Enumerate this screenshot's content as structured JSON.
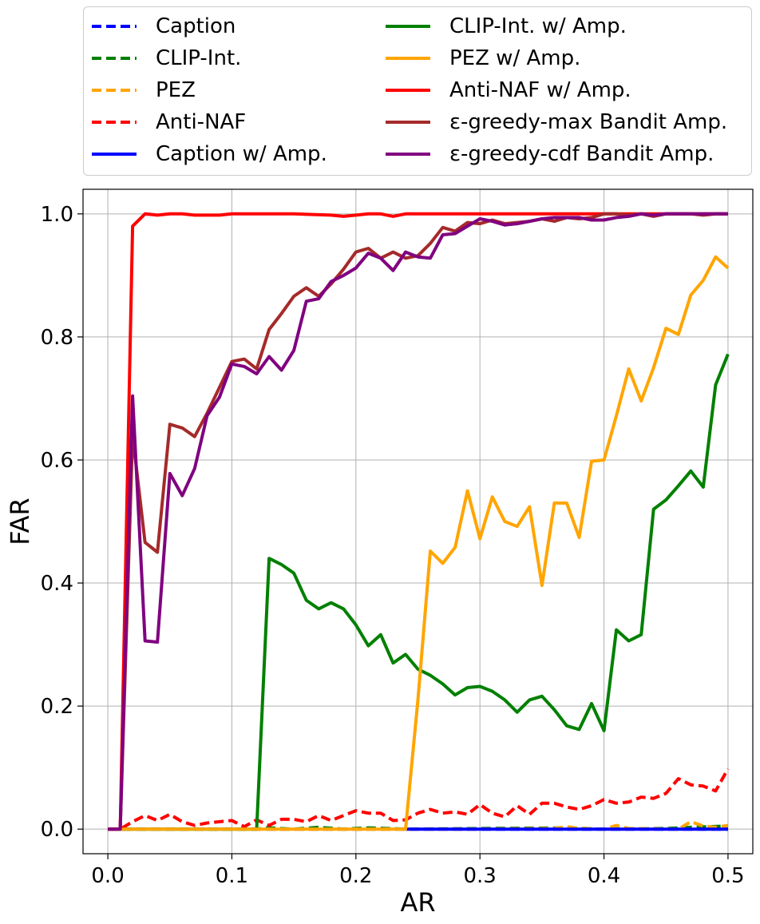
{
  "chart_data": {
    "type": "line",
    "xlabel": "AR",
    "ylabel": "FAR",
    "xlim": [
      -0.02,
      0.52
    ],
    "ylim": [
      -0.04,
      1.04
    ],
    "xticks": [
      "0.0",
      "0.1",
      "0.2",
      "0.3",
      "0.4",
      "0.5"
    ],
    "yticks": [
      "0.0",
      "0.2",
      "0.4",
      "0.6",
      "0.8",
      "1.0"
    ],
    "grid": true,
    "legend_position": "top",
    "series": [
      {
        "name": "Caption",
        "color": "#0000ff",
        "dashed": true,
        "x": [
          0,
          0.5
        ],
        "y": [
          0,
          0
        ]
      },
      {
        "name": "CLIP-Int.",
        "color": "#008000",
        "dashed": true,
        "x": [
          0,
          0.12,
          0.13,
          0.15,
          0.17,
          0.19,
          0.21,
          0.24,
          0.3,
          0.37,
          0.4,
          0.45,
          0.47,
          0.5
        ],
        "y": [
          0,
          0,
          0.002,
          0,
          0.003,
          0,
          0.002,
          0,
          0.001,
          0.002,
          0,
          0.001,
          0.003,
          0.005
        ]
      },
      {
        "name": "PEZ",
        "color": "#ffa500",
        "dashed": true,
        "x": [
          0,
          0.3,
          0.36,
          0.37,
          0.38,
          0.4,
          0.41,
          0.42,
          0.46,
          0.47,
          0.48,
          0.49,
          0.5
        ],
        "y": [
          0,
          0,
          0.001,
          0.004,
          0.001,
          0,
          0.006,
          0.001,
          0,
          0.012,
          0.005,
          0.003,
          0.006
        ]
      },
      {
        "name": "Anti-NAF",
        "color": "#ff0000",
        "dashed": true,
        "x": [
          0,
          0.01,
          0.02,
          0.03,
          0.04,
          0.05,
          0.06,
          0.07,
          0.08,
          0.09,
          0.1,
          0.11,
          0.12,
          0.13,
          0.14,
          0.15,
          0.16,
          0.17,
          0.18,
          0.19,
          0.2,
          0.21,
          0.22,
          0.23,
          0.24,
          0.25,
          0.26,
          0.27,
          0.28,
          0.29,
          0.3,
          0.31,
          0.32,
          0.33,
          0.34,
          0.35,
          0.36,
          0.37,
          0.38,
          0.39,
          0.4,
          0.41,
          0.42,
          0.43,
          0.44,
          0.45,
          0.46,
          0.47,
          0.48,
          0.49,
          0.5
        ],
        "y": [
          0,
          0,
          0.012,
          0.022,
          0.014,
          0.024,
          0.012,
          0.006,
          0.01,
          0.012,
          0.014,
          0.004,
          0.015,
          0.006,
          0.016,
          0.016,
          0.012,
          0.022,
          0.014,
          0.022,
          0.03,
          0.026,
          0.026,
          0.014,
          0.015,
          0.026,
          0.032,
          0.026,
          0.028,
          0.024,
          0.04,
          0.026,
          0.02,
          0.038,
          0.024,
          0.042,
          0.042,
          0.036,
          0.032,
          0.038,
          0.048,
          0.042,
          0.044,
          0.052,
          0.05,
          0.058,
          0.082,
          0.072,
          0.07,
          0.062,
          0.098
        ]
      },
      {
        "name": "Caption w/ Amp.",
        "color": "#0000ff",
        "dashed": false,
        "x": [
          0.24,
          0.5
        ],
        "y": [
          0,
          0
        ]
      },
      {
        "name": "CLIP-Int. w/ Amp.",
        "color": "#008000",
        "dashed": false,
        "x": [
          0,
          0.12,
          0.13,
          0.14,
          0.15,
          0.16,
          0.17,
          0.18,
          0.19,
          0.2,
          0.21,
          0.22,
          0.23,
          0.24,
          0.25,
          0.26,
          0.27,
          0.28,
          0.29,
          0.3,
          0.31,
          0.32,
          0.33,
          0.34,
          0.35,
          0.36,
          0.37,
          0.38,
          0.39,
          0.4,
          0.41,
          0.42,
          0.43,
          0.44,
          0.45,
          0.46,
          0.47,
          0.48,
          0.49,
          0.5
        ],
        "y": [
          0,
          0,
          0.44,
          0.43,
          0.416,
          0.372,
          0.358,
          0.368,
          0.358,
          0.332,
          0.298,
          0.316,
          0.27,
          0.284,
          0.26,
          0.25,
          0.236,
          0.218,
          0.23,
          0.232,
          0.224,
          0.21,
          0.19,
          0.21,
          0.216,
          0.194,
          0.168,
          0.162,
          0.204,
          0.16,
          0.324,
          0.306,
          0.316,
          0.52,
          0.535,
          0.558,
          0.582,
          0.556,
          0.722,
          0.772
        ]
      },
      {
        "name": "PEZ w/ Amp.",
        "color": "#ffa500",
        "dashed": false,
        "x": [
          0,
          0.24,
          0.25,
          0.26,
          0.27,
          0.28,
          0.29,
          0.3,
          0.31,
          0.32,
          0.33,
          0.34,
          0.35,
          0.36,
          0.37,
          0.38,
          0.39,
          0.4,
          0.41,
          0.42,
          0.43,
          0.44,
          0.45,
          0.46,
          0.47,
          0.48,
          0.49,
          0.5
        ],
        "y": [
          0,
          0,
          0.21,
          0.452,
          0.432,
          0.458,
          0.55,
          0.472,
          0.54,
          0.5,
          0.492,
          0.524,
          0.396,
          0.53,
          0.53,
          0.474,
          0.598,
          0.6,
          0.672,
          0.748,
          0.696,
          0.75,
          0.814,
          0.804,
          0.868,
          0.892,
          0.93,
          0.912
        ]
      },
      {
        "name": "Anti-NAF w/ Amp.",
        "color": "#ff0000",
        "dashed": false,
        "x": [
          0,
          0.01,
          0.02,
          0.03,
          0.04,
          0.05,
          0.06,
          0.07,
          0.08,
          0.09,
          0.1,
          0.15,
          0.18,
          0.19,
          0.2,
          0.21,
          0.22,
          0.23,
          0.24,
          0.5
        ],
        "y": [
          0,
          0,
          0.98,
          1.0,
          0.998,
          1.0,
          1.0,
          0.998,
          0.998,
          0.998,
          1.0,
          1.0,
          0.998,
          0.996,
          0.998,
          1.0,
          1.0,
          0.996,
          1.0,
          1.0
        ]
      },
      {
        "name": "ε-greedy-max Bandit Amp.",
        "color": "#a52a2a",
        "dashed": false,
        "x": [
          0,
          0.01,
          0.02,
          0.03,
          0.04,
          0.05,
          0.06,
          0.07,
          0.08,
          0.09,
          0.1,
          0.11,
          0.12,
          0.13,
          0.14,
          0.15,
          0.16,
          0.17,
          0.18,
          0.19,
          0.2,
          0.21,
          0.22,
          0.23,
          0.24,
          0.25,
          0.26,
          0.27,
          0.28,
          0.29,
          0.3,
          0.31,
          0.32,
          0.33,
          0.34,
          0.35,
          0.36,
          0.37,
          0.38,
          0.39,
          0.4,
          0.41,
          0.42,
          0.43,
          0.44,
          0.45,
          0.46,
          0.47,
          0.48,
          0.49,
          0.5
        ],
        "y": [
          0,
          0,
          0.64,
          0.466,
          0.45,
          0.658,
          0.652,
          0.638,
          0.676,
          0.718,
          0.76,
          0.764,
          0.748,
          0.812,
          0.838,
          0.866,
          0.88,
          0.866,
          0.886,
          0.91,
          0.938,
          0.944,
          0.928,
          0.938,
          0.928,
          0.932,
          0.952,
          0.978,
          0.972,
          0.986,
          0.984,
          0.99,
          0.984,
          0.986,
          0.988,
          0.992,
          0.988,
          0.994,
          0.992,
          0.994,
          1.0,
          1.0,
          0.998,
          1.0,
          0.996,
          1.0,
          1.0,
          1.0,
          0.998,
          1.0,
          1.0
        ]
      },
      {
        "name": "ε-greedy-cdf Bandit Amp.",
        "color": "#800080",
        "dashed": false,
        "x": [
          0,
          0.01,
          0.02,
          0.03,
          0.04,
          0.05,
          0.06,
          0.07,
          0.08,
          0.09,
          0.1,
          0.11,
          0.12,
          0.13,
          0.14,
          0.15,
          0.16,
          0.17,
          0.18,
          0.19,
          0.2,
          0.21,
          0.22,
          0.23,
          0.24,
          0.25,
          0.26,
          0.27,
          0.28,
          0.29,
          0.3,
          0.31,
          0.32,
          0.33,
          0.34,
          0.35,
          0.36,
          0.37,
          0.38,
          0.39,
          0.4,
          0.41,
          0.42,
          0.43,
          0.44,
          0.45,
          0.46,
          0.47,
          0.48,
          0.49,
          0.5
        ],
        "y": [
          0,
          0,
          0.704,
          0.306,
          0.304,
          0.578,
          0.542,
          0.586,
          0.672,
          0.702,
          0.756,
          0.752,
          0.74,
          0.768,
          0.746,
          0.778,
          0.858,
          0.862,
          0.89,
          0.9,
          0.912,
          0.936,
          0.928,
          0.908,
          0.938,
          0.93,
          0.928,
          0.966,
          0.968,
          0.98,
          0.992,
          0.988,
          0.982,
          0.984,
          0.988,
          0.992,
          0.994,
          0.994,
          0.994,
          0.99,
          0.99,
          0.994,
          0.996,
          1.0,
          0.998,
          1.0,
          1.0,
          1.0,
          1.0,
          1.0,
          1.0
        ]
      }
    ]
  }
}
